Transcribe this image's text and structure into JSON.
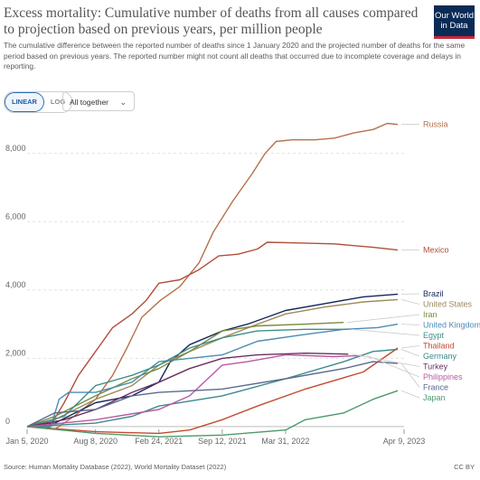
{
  "header": {
    "title": "Excess mortality: Cumulative number of deaths from all causes compared to projection based on previous years, per million people",
    "subtitle": "The cumulative difference between the reported number of deaths since 1 January 2020 and the projected number of deaths for the same period based on previous years. The reported number might not count all deaths that occurred due to incomplete coverage and delays in reporting.",
    "logo_line1": "Our World",
    "logo_line2": "in Data"
  },
  "controls": {
    "linear_label": "LINEAR",
    "log_label": "LOG",
    "active_scale": "linear",
    "entity_select": "All together"
  },
  "footer": {
    "source": "Source: Human Mortality Database (2022), World Mortality Dataset (2022)",
    "license": "CC BY"
  },
  "chart_data": {
    "type": "line",
    "x_tick_labels": [
      "Jan 5, 2020",
      "Aug 8, 2020",
      "Feb 24, 2021",
      "Sep 12, 2021",
      "Mar 31, 2022",
      "Apr 9, 2023"
    ],
    "x_tick_dates": [
      "2020-01-05",
      "2020-08-08",
      "2021-02-24",
      "2021-09-12",
      "2022-03-31",
      "2023-04-09"
    ],
    "xlim": [
      "2020-01-05",
      "2023-04-09"
    ],
    "ylim": [
      -400,
      9000
    ],
    "y_ticks": [
      0,
      2000,
      4000,
      6000,
      8000
    ],
    "y_tick_labels": [
      "0",
      "2,000",
      "4,000",
      "6,000",
      "8,000"
    ],
    "grid": "horizontal dashed",
    "legend": "right, labels at line ends",
    "series": [
      {
        "name": "Russia",
        "color": "#b5714b",
        "points": [
          [
            "2020-01-05",
            0
          ],
          [
            "2020-04-01",
            -80
          ],
          [
            "2020-06-01",
            300
          ],
          [
            "2020-08-08",
            800
          ],
          [
            "2020-10-01",
            1500
          ],
          [
            "2020-11-15",
            2300
          ],
          [
            "2021-01-01",
            3200
          ],
          [
            "2021-03-01",
            3700
          ],
          [
            "2021-05-01",
            4100
          ],
          [
            "2021-07-01",
            4800
          ],
          [
            "2021-08-15",
            5700
          ],
          [
            "2021-10-15",
            6600
          ],
          [
            "2021-12-15",
            7400
          ],
          [
            "2022-01-25",
            8000
          ],
          [
            "2022-03-01",
            8350
          ],
          [
            "2022-04-20",
            8400
          ],
          [
            "2022-07-01",
            8400
          ],
          [
            "2022-09-01",
            8450
          ],
          [
            "2022-11-01",
            8600
          ],
          [
            "2023-01-01",
            8700
          ],
          [
            "2023-02-15",
            8880
          ],
          [
            "2023-03-20",
            8850
          ]
        ]
      },
      {
        "name": "Mexico",
        "color": "#b04e3b",
        "points": [
          [
            "2020-01-05",
            0
          ],
          [
            "2020-03-15",
            -30
          ],
          [
            "2020-05-01",
            700
          ],
          [
            "2020-06-15",
            1500
          ],
          [
            "2020-08-08",
            2200
          ],
          [
            "2020-10-01",
            2900
          ],
          [
            "2020-12-01",
            3300
          ],
          [
            "2021-01-15",
            3700
          ],
          [
            "2021-02-24",
            4200
          ],
          [
            "2021-05-01",
            4300
          ],
          [
            "2021-07-01",
            4600
          ],
          [
            "2021-09-01",
            5000
          ],
          [
            "2021-11-01",
            5050
          ],
          [
            "2022-01-01",
            5200
          ],
          [
            "2022-02-01",
            5400
          ],
          [
            "2022-05-01",
            5380
          ],
          [
            "2022-09-01",
            5350
          ],
          [
            "2023-01-01",
            5250
          ],
          [
            "2023-03-20",
            5170
          ]
        ]
      },
      {
        "name": "Brazil",
        "color": "#15275a",
        "points": [
          [
            "2020-01-05",
            0
          ],
          [
            "2020-04-01",
            100
          ],
          [
            "2020-08-08",
            700
          ],
          [
            "2020-12-01",
            900
          ],
          [
            "2021-02-24",
            1300
          ],
          [
            "2021-04-01",
            1900
          ],
          [
            "2021-06-01",
            2400
          ],
          [
            "2021-09-12",
            2800
          ],
          [
            "2021-12-01",
            3000
          ],
          [
            "2022-03-31",
            3400
          ],
          [
            "2022-08-01",
            3600
          ],
          [
            "2022-12-01",
            3800
          ],
          [
            "2023-03-20",
            3880
          ]
        ]
      },
      {
        "name": "United States",
        "color": "#9d8a5a",
        "points": [
          [
            "2020-01-05",
            0
          ],
          [
            "2020-04-01",
            200
          ],
          [
            "2020-08-08",
            800
          ],
          [
            "2020-12-01",
            1200
          ],
          [
            "2021-02-24",
            1800
          ],
          [
            "2021-06-01",
            2200
          ],
          [
            "2021-09-12",
            2600
          ],
          [
            "2022-01-01",
            3000
          ],
          [
            "2022-03-31",
            3300
          ],
          [
            "2022-08-01",
            3500
          ],
          [
            "2022-12-01",
            3650
          ],
          [
            "2023-03-20",
            3720
          ]
        ]
      },
      {
        "name": "Iran",
        "color": "#7b8a3e",
        "points": [
          [
            "2020-01-05",
            0
          ],
          [
            "2020-04-01",
            300
          ],
          [
            "2020-08-08",
            900
          ],
          [
            "2020-12-01",
            1400
          ],
          [
            "2021-02-24",
            1700
          ],
          [
            "2021-06-01",
            2200
          ],
          [
            "2021-09-12",
            2800
          ],
          [
            "2022-01-01",
            2950
          ],
          [
            "2022-06-01",
            3000
          ],
          [
            "2022-09-30",
            3050
          ]
        ]
      },
      {
        "name": "United Kingdom",
        "color": "#4b8cb3",
        "points": [
          [
            "2020-01-05",
            0
          ],
          [
            "2020-03-20",
            0
          ],
          [
            "2020-04-15",
            800
          ],
          [
            "2020-05-15",
            1000
          ],
          [
            "2020-08-08",
            1000
          ],
          [
            "2020-12-01",
            1300
          ],
          [
            "2021-02-24",
            1900
          ],
          [
            "2021-06-01",
            2000
          ],
          [
            "2021-09-12",
            2100
          ],
          [
            "2022-01-01",
            2500
          ],
          [
            "2022-06-01",
            2700
          ],
          [
            "2022-10-01",
            2850
          ],
          [
            "2023-01-15",
            2900
          ],
          [
            "2023-03-20",
            3000
          ]
        ]
      },
      {
        "name": "Egypt",
        "color": "#3f8f87",
        "points": [
          [
            "2020-01-05",
            0
          ],
          [
            "2020-05-01",
            300
          ],
          [
            "2020-08-08",
            1200
          ],
          [
            "2020-12-01",
            1500
          ],
          [
            "2021-02-24",
            1800
          ],
          [
            "2021-06-01",
            2300
          ],
          [
            "2021-09-12",
            2600
          ],
          [
            "2022-01-01",
            2800
          ],
          [
            "2022-06-01",
            2850
          ],
          [
            "2022-10-15",
            2850
          ]
        ]
      },
      {
        "name": "Thailand",
        "color": "#c44b2f",
        "points": [
          [
            "2020-01-05",
            0
          ],
          [
            "2020-08-08",
            -150
          ],
          [
            "2021-02-24",
            -200
          ],
          [
            "2021-06-01",
            -100
          ],
          [
            "2021-09-12",
            200
          ],
          [
            "2022-01-01",
            600
          ],
          [
            "2022-06-01",
            1100
          ],
          [
            "2022-12-01",
            1600
          ],
          [
            "2023-03-20",
            2300
          ]
        ]
      },
      {
        "name": "Germany",
        "color": "#3b8a8a",
        "points": [
          [
            "2020-01-05",
            0
          ],
          [
            "2020-08-08",
            100
          ],
          [
            "2020-12-01",
            300
          ],
          [
            "2021-02-24",
            600
          ],
          [
            "2021-09-12",
            900
          ],
          [
            "2022-03-31",
            1400
          ],
          [
            "2022-10-01",
            1900
          ],
          [
            "2023-01-01",
            2200
          ],
          [
            "2023-03-20",
            2260
          ]
        ]
      },
      {
        "name": "Turkey",
        "color": "#6b2f61",
        "points": [
          [
            "2020-01-05",
            0
          ],
          [
            "2020-05-01",
            200
          ],
          [
            "2020-08-08",
            500
          ],
          [
            "2020-12-01",
            1000
          ],
          [
            "2021-02-24",
            1300
          ],
          [
            "2021-06-01",
            1700
          ],
          [
            "2021-09-12",
            2000
          ],
          [
            "2022-01-01",
            2100
          ],
          [
            "2022-06-01",
            2150
          ],
          [
            "2022-10-15",
            2120
          ]
        ]
      },
      {
        "name": "Philippines",
        "color": "#b95aa3",
        "points": [
          [
            "2020-01-05",
            0
          ],
          [
            "2020-08-08",
            200
          ],
          [
            "2021-02-24",
            500
          ],
          [
            "2021-06-01",
            900
          ],
          [
            "2021-09-12",
            1800
          ],
          [
            "2021-12-01",
            1900
          ],
          [
            "2022-03-31",
            2100
          ],
          [
            "2022-09-01",
            2050
          ],
          [
            "2022-12-01",
            2080
          ]
        ]
      },
      {
        "name": "France",
        "color": "#5c6a8f",
        "points": [
          [
            "2020-01-05",
            0
          ],
          [
            "2020-04-01",
            400
          ],
          [
            "2020-08-08",
            500
          ],
          [
            "2020-12-01",
            900
          ],
          [
            "2021-02-24",
            1000
          ],
          [
            "2021-09-12",
            1100
          ],
          [
            "2022-03-31",
            1400
          ],
          [
            "2022-10-01",
            1700
          ],
          [
            "2023-01-01",
            1900
          ],
          [
            "2023-03-20",
            1850
          ]
        ]
      },
      {
        "name": "Japan",
        "color": "#4a9a6a",
        "points": [
          [
            "2020-01-05",
            0
          ],
          [
            "2020-08-08",
            -200
          ],
          [
            "2021-02-24",
            -300
          ],
          [
            "2021-09-12",
            -250
          ],
          [
            "2022-03-31",
            -100
          ],
          [
            "2022-06-01",
            200
          ],
          [
            "2022-10-01",
            400
          ],
          [
            "2023-01-01",
            800
          ],
          [
            "2023-03-20",
            1050
          ]
        ]
      }
    ]
  }
}
